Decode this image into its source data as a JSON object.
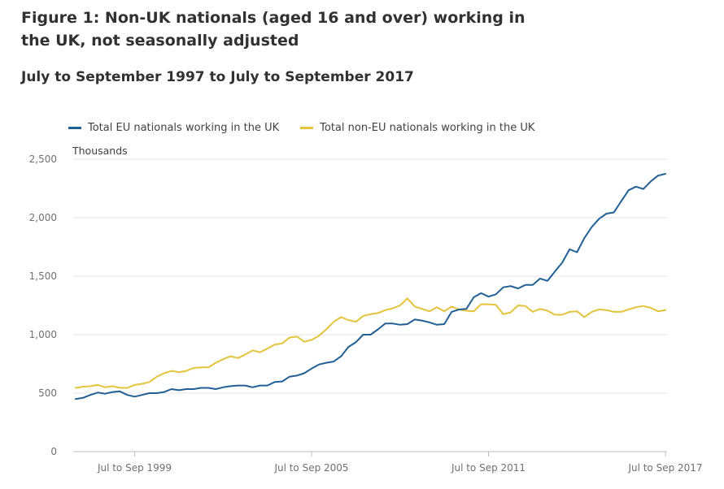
{
  "figure": {
    "title": "Figure 1: Non-UK nationals (aged 16 and over) working in the UK, not seasonally adjusted",
    "subtitle": "July to September 1997 to July to September 2017"
  },
  "chart_data": {
    "type": "line",
    "title": "Figure 1: Non-UK nationals (aged 16 and over) working in the UK, not seasonally adjusted",
    "subtitle": "July to September 1997 to July to September 2017",
    "ylabel": "Thousands",
    "xlabel": "",
    "ylim": [
      0,
      2500
    ],
    "yticks": [
      0,
      500,
      1000,
      1500,
      2000,
      2500
    ],
    "ytick_labels": [
      "0",
      "500",
      "1,000",
      "1,500",
      "2,000",
      "2,500"
    ],
    "grid": true,
    "legend_position": "top-left",
    "x_first": "Jul to Sep 1997",
    "x_last": "Jul to Sep 2017",
    "x_frequency": "quarterly",
    "xticks": [
      {
        "index": 8,
        "label": "Jul to Sep 1999"
      },
      {
        "index": 32,
        "label": "Jul to Sep 2005"
      },
      {
        "index": 56,
        "label": "Jul to Sep 2011"
      },
      {
        "index": 80,
        "label": "Jul to Sep 2017"
      }
    ],
    "series": [
      {
        "name": "Total EU nationals working in the UK",
        "color": "#206095",
        "values": [
          450,
          460,
          485,
          505,
          495,
          510,
          515,
          485,
          470,
          485,
          500,
          500,
          510,
          535,
          525,
          535,
          535,
          545,
          545,
          535,
          550,
          560,
          565,
          565,
          550,
          565,
          565,
          595,
          600,
          640,
          650,
          670,
          710,
          745,
          760,
          770,
          815,
          895,
          935,
          1000,
          1000,
          1045,
          1095,
          1095,
          1085,
          1090,
          1130,
          1120,
          1105,
          1085,
          1090,
          1195,
          1215,
          1220,
          1320,
          1355,
          1325,
          1345,
          1405,
          1415,
          1395,
          1425,
          1425,
          1480,
          1460,
          1540,
          1615,
          1730,
          1705,
          1825,
          1920,
          1990,
          2035,
          2045,
          2140,
          2235,
          2265,
          2245,
          2310,
          2360,
          2375
        ]
      },
      {
        "name": "Total non-EU nationals working in the UK",
        "color": "#e4c43c",
        "values": [
          545,
          555,
          560,
          570,
          550,
          560,
          545,
          545,
          570,
          580,
          595,
          640,
          670,
          690,
          680,
          690,
          715,
          720,
          720,
          760,
          790,
          815,
          800,
          830,
          865,
          850,
          880,
          915,
          925,
          975,
          985,
          940,
          955,
          990,
          1045,
          1110,
          1150,
          1125,
          1110,
          1160,
          1175,
          1185,
          1210,
          1225,
          1250,
          1310,
          1240,
          1220,
          1200,
          1235,
          1200,
          1240,
          1215,
          1205,
          1200,
          1260,
          1260,
          1255,
          1175,
          1190,
          1250,
          1245,
          1195,
          1220,
          1205,
          1170,
          1170,
          1195,
          1200,
          1150,
          1195,
          1215,
          1210,
          1195,
          1195,
          1215,
          1235,
          1245,
          1230,
          1200,
          1210
        ]
      }
    ]
  }
}
